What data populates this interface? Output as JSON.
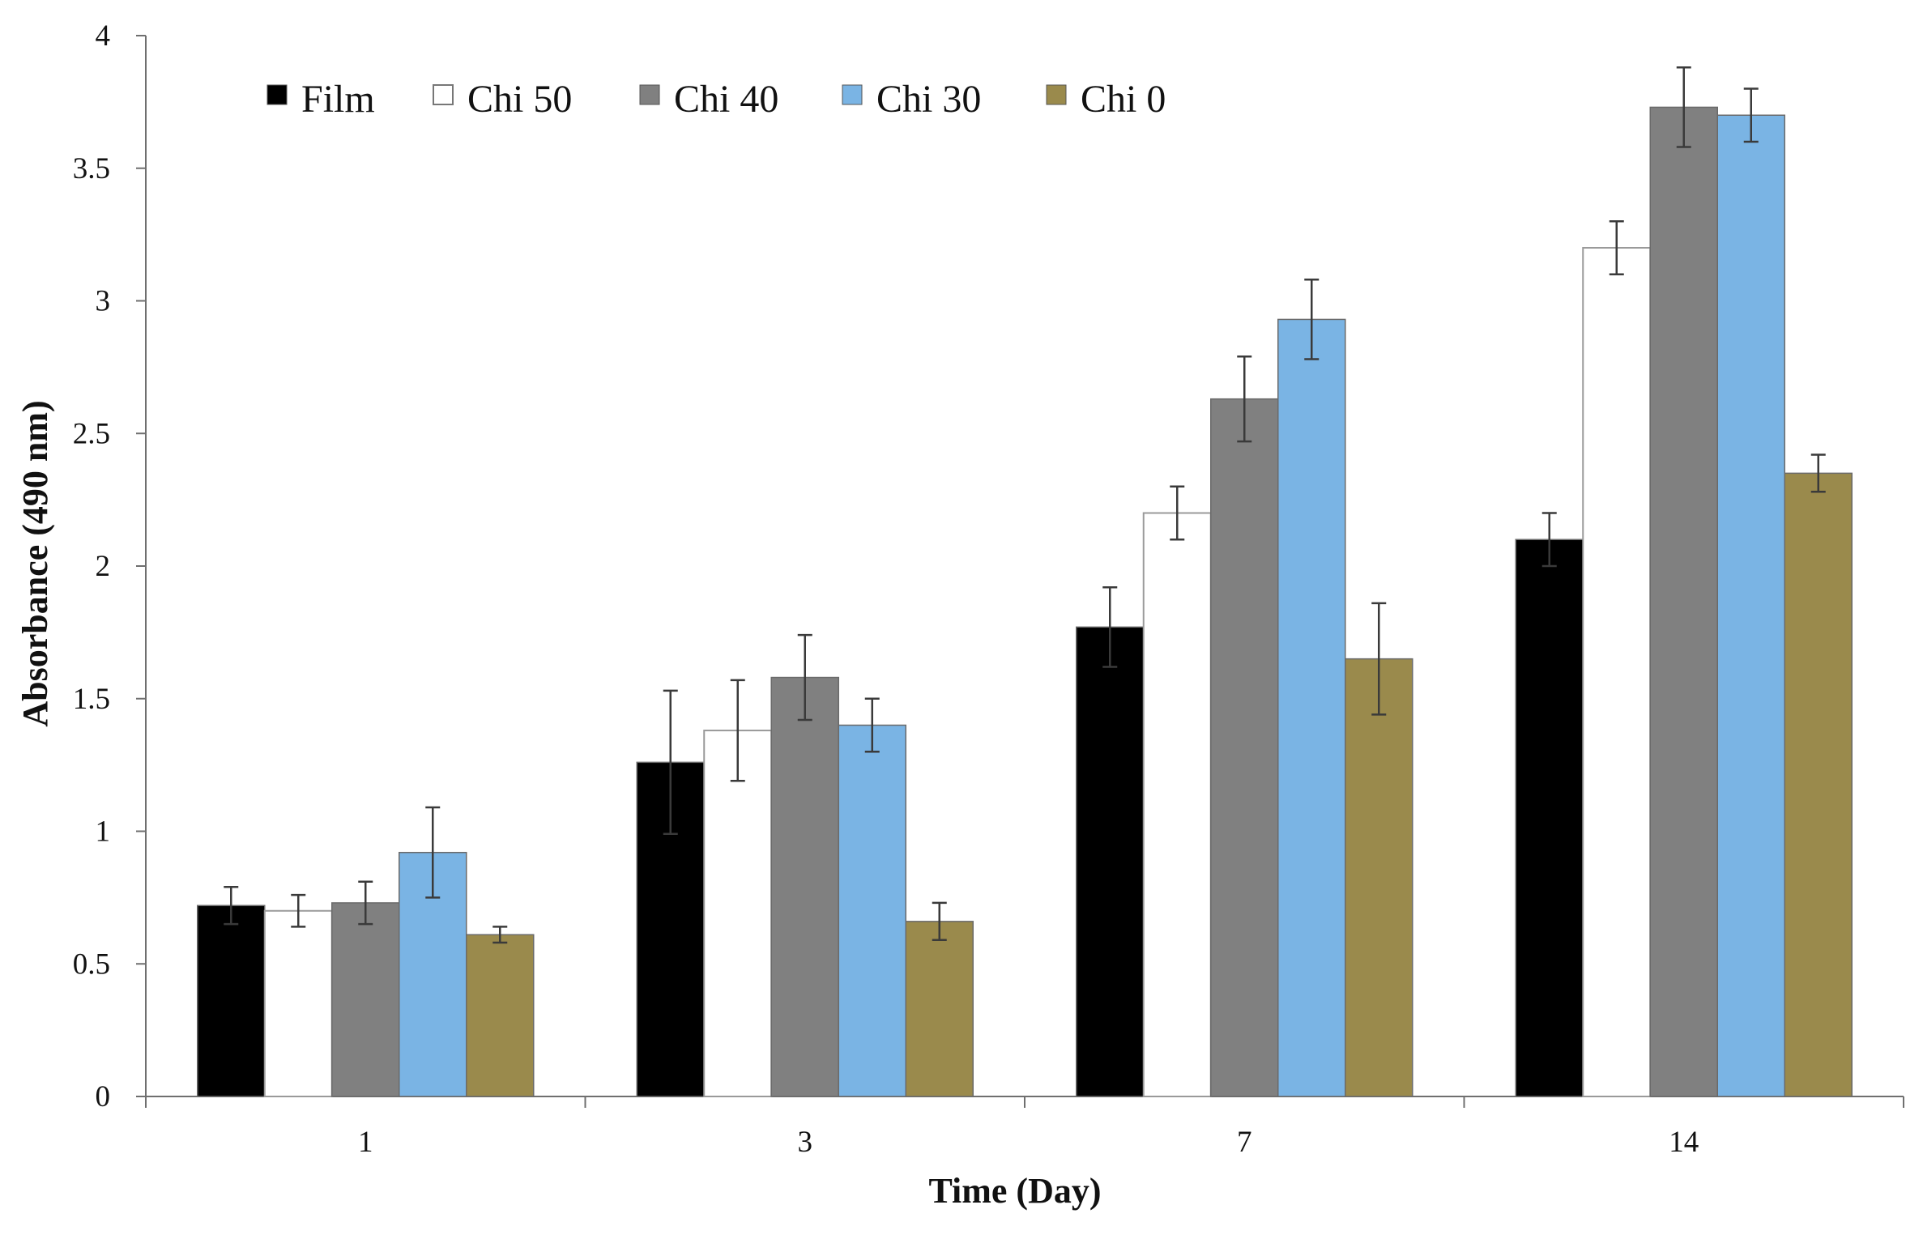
{
  "chart_data": {
    "type": "bar",
    "title": "",
    "xlabel": "Time (Day)",
    "ylabel": "Absorbance (490 nm)",
    "categories": [
      "1",
      "3",
      "7",
      "14"
    ],
    "ylim": [
      0,
      4
    ],
    "yticks": [
      "0",
      "0.5",
      "1",
      "1.5",
      "2",
      "2.5",
      "3",
      "3.5",
      "4"
    ],
    "grid": false,
    "legend_position": "top-left",
    "series": [
      {
        "name": "Film",
        "color": "#000000",
        "values": [
          0.72,
          1.26,
          1.77,
          2.1
        ],
        "errors": [
          0.07,
          0.27,
          0.15,
          0.1
        ]
      },
      {
        "name": "Chi 50",
        "color": "#ffffff",
        "values": [
          0.7,
          1.38,
          2.2,
          3.2
        ],
        "errors": [
          0.06,
          0.19,
          0.1,
          0.1
        ]
      },
      {
        "name": "Chi 40",
        "color": "#808080",
        "values": [
          0.73,
          1.58,
          2.63,
          3.73
        ],
        "errors": [
          0.08,
          0.16,
          0.16,
          0.15
        ]
      },
      {
        "name": "Chi 30",
        "color": "#7ab4e4",
        "values": [
          0.92,
          1.4,
          2.93,
          3.7
        ],
        "errors": [
          0.17,
          0.1,
          0.15,
          0.1
        ]
      },
      {
        "name": "Chi 0",
        "color": "#9a8a4c",
        "values": [
          0.61,
          0.66,
          1.65,
          2.35
        ],
        "errors": [
          0.03,
          0.07,
          0.21,
          0.07
        ]
      }
    ]
  }
}
